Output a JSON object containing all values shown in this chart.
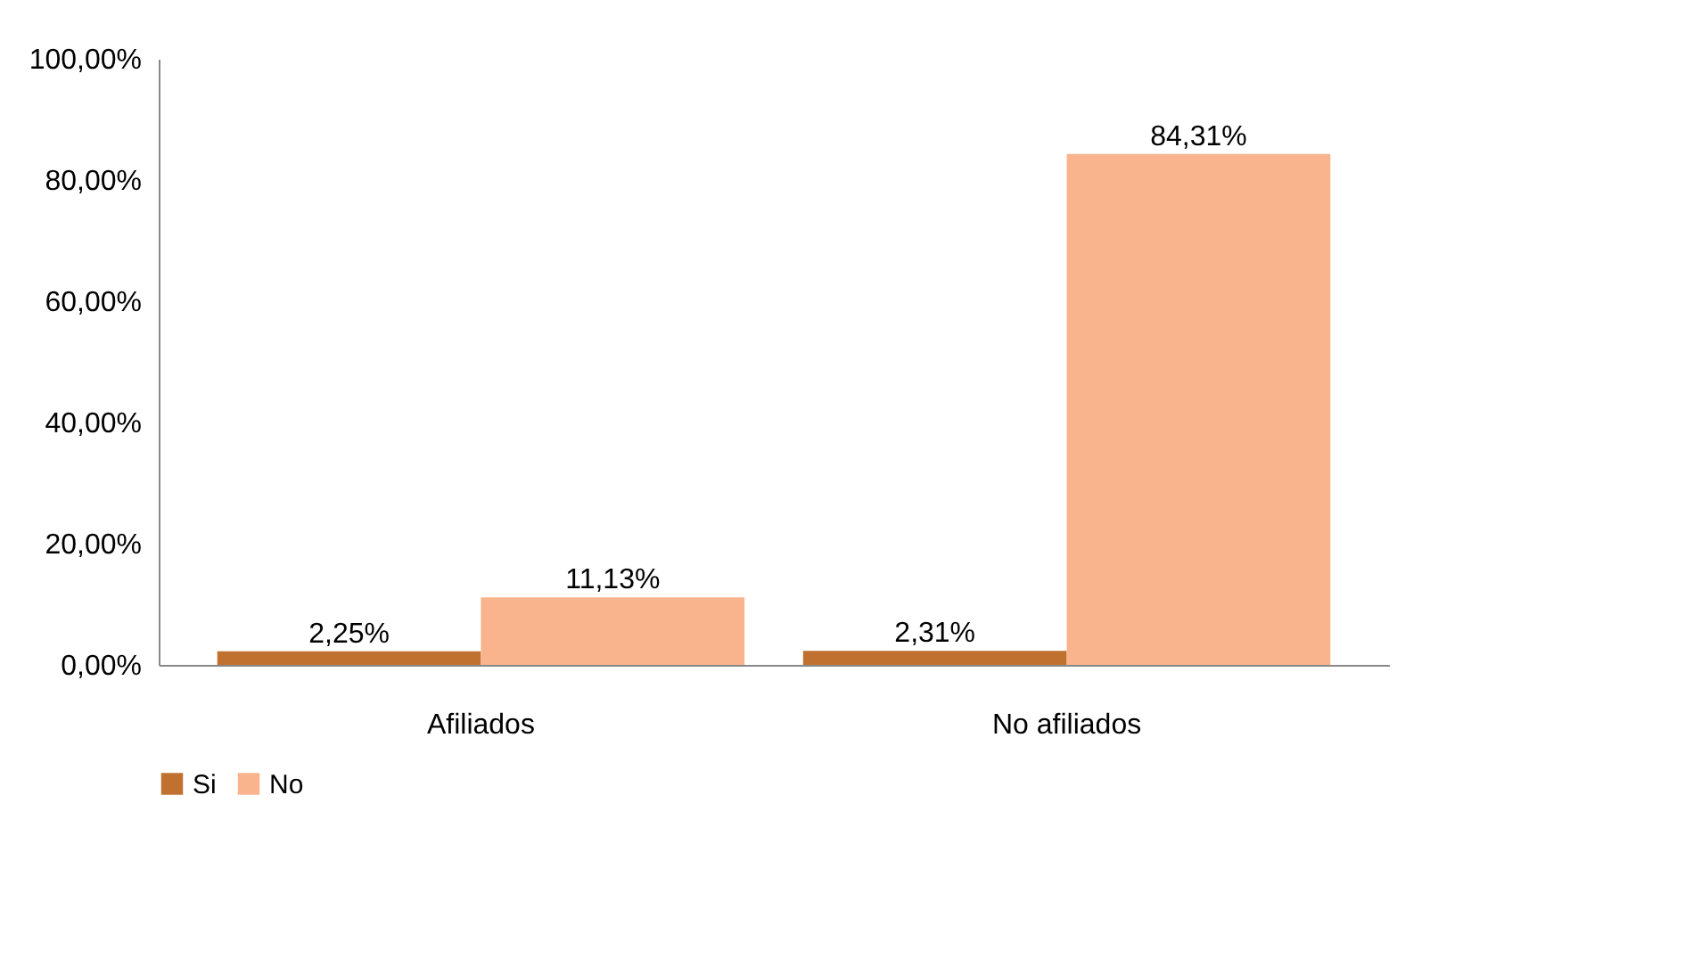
{
  "chart_data": {
    "type": "bar",
    "categories": [
      "Afiliados",
      "No afiliados"
    ],
    "series": [
      {
        "name": "Si",
        "color": "#c0712f",
        "values": [
          2.25,
          2.31
        ],
        "value_labels": [
          "2,25%",
          "2,31%"
        ]
      },
      {
        "name": "No",
        "color": "#f9b48e",
        "values": [
          11.13,
          84.31
        ],
        "value_labels": [
          "11,13%",
          "84,31%"
        ]
      }
    ],
    "ylim": [
      0,
      100
    ],
    "yticks": [
      {
        "value": 0,
        "label": "0,00%"
      },
      {
        "value": 20,
        "label": "20,00%"
      },
      {
        "value": 40,
        "label": "40,00%"
      },
      {
        "value": 60,
        "label": "60,00%"
      },
      {
        "value": 80,
        "label": "80,00%"
      },
      {
        "value": 100,
        "label": "100,00%"
      }
    ],
    "grid": false,
    "legend": "bottom"
  }
}
